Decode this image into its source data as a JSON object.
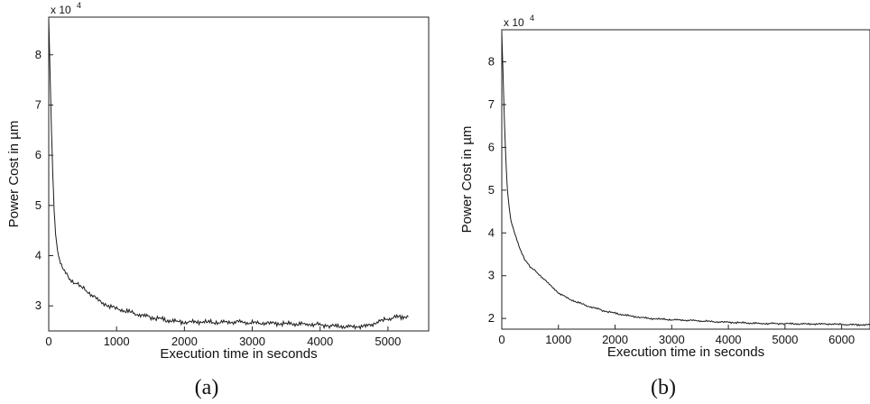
{
  "chart_data": [
    {
      "type": "line",
      "panel": "a",
      "caption": "(a)",
      "xlabel": "Execution time in seconds",
      "ylabel": "Power Cost  in µm",
      "y_multiplier": "x 10",
      "y_exponent": "4",
      "xlim": [
        0,
        5600
      ],
      "ylim": [
        2.5,
        8.75
      ],
      "xticks": [
        0,
        1000,
        2000,
        3000,
        4000,
        5000
      ],
      "yticks": [
        3,
        4,
        5,
        6,
        7,
        8
      ],
      "grid": false,
      "series": [
        {
          "x": [
            0,
            20,
            40,
            60,
            80,
            100,
            130,
            160,
            200,
            250,
            300,
            350,
            400,
            500,
            600,
            700,
            800,
            900,
            1000,
            1200,
            1400,
            1600,
            1800,
            2000,
            2200,
            2500,
            2800,
            3000,
            3300,
            3600,
            3900,
            4200,
            4500,
            4700,
            4900,
            5100,
            5300
          ],
          "y": [
            8.7,
            7.6,
            6.5,
            5.6,
            4.9,
            4.45,
            4.1,
            3.9,
            3.75,
            3.65,
            3.55,
            3.5,
            3.45,
            3.35,
            3.25,
            3.15,
            3.05,
            3.0,
            2.95,
            2.88,
            2.8,
            2.75,
            2.7,
            2.67,
            2.68,
            2.67,
            2.68,
            2.66,
            2.65,
            2.64,
            2.63,
            2.6,
            2.58,
            2.6,
            2.7,
            2.77,
            2.78
          ]
        }
      ]
    },
    {
      "type": "line",
      "panel": "b",
      "caption": "(b)",
      "xlabel": "Execution time in seconds",
      "ylabel": "Power Cost  in µm",
      "y_multiplier": "x 10",
      "y_exponent": "4",
      "xlim": [
        0,
        6500
      ],
      "ylim": [
        1.75,
        8.75
      ],
      "xticks": [
        0,
        1000,
        2000,
        3000,
        4000,
        5000,
        6000
      ],
      "yticks": [
        2,
        3,
        4,
        5,
        6,
        7,
        8
      ],
      "grid": false,
      "series": [
        {
          "x": [
            0,
            20,
            40,
            60,
            80,
            100,
            130,
            160,
            200,
            250,
            300,
            400,
            500,
            600,
            800,
            1000,
            1200,
            1500,
            1800,
            2000,
            2300,
            2600,
            3000,
            3400,
            3800,
            4200,
            4600,
            5000,
            5400,
            5800,
            6200,
            6500
          ],
          "y": [
            8.7,
            7.8,
            6.9,
            6.1,
            5.5,
            5.0,
            4.6,
            4.3,
            4.1,
            3.9,
            3.7,
            3.4,
            3.2,
            3.1,
            2.85,
            2.6,
            2.45,
            2.3,
            2.18,
            2.12,
            2.05,
            2.0,
            1.97,
            1.95,
            1.92,
            1.9,
            1.88,
            1.88,
            1.87,
            1.87,
            1.85,
            1.85
          ]
        }
      ]
    }
  ]
}
